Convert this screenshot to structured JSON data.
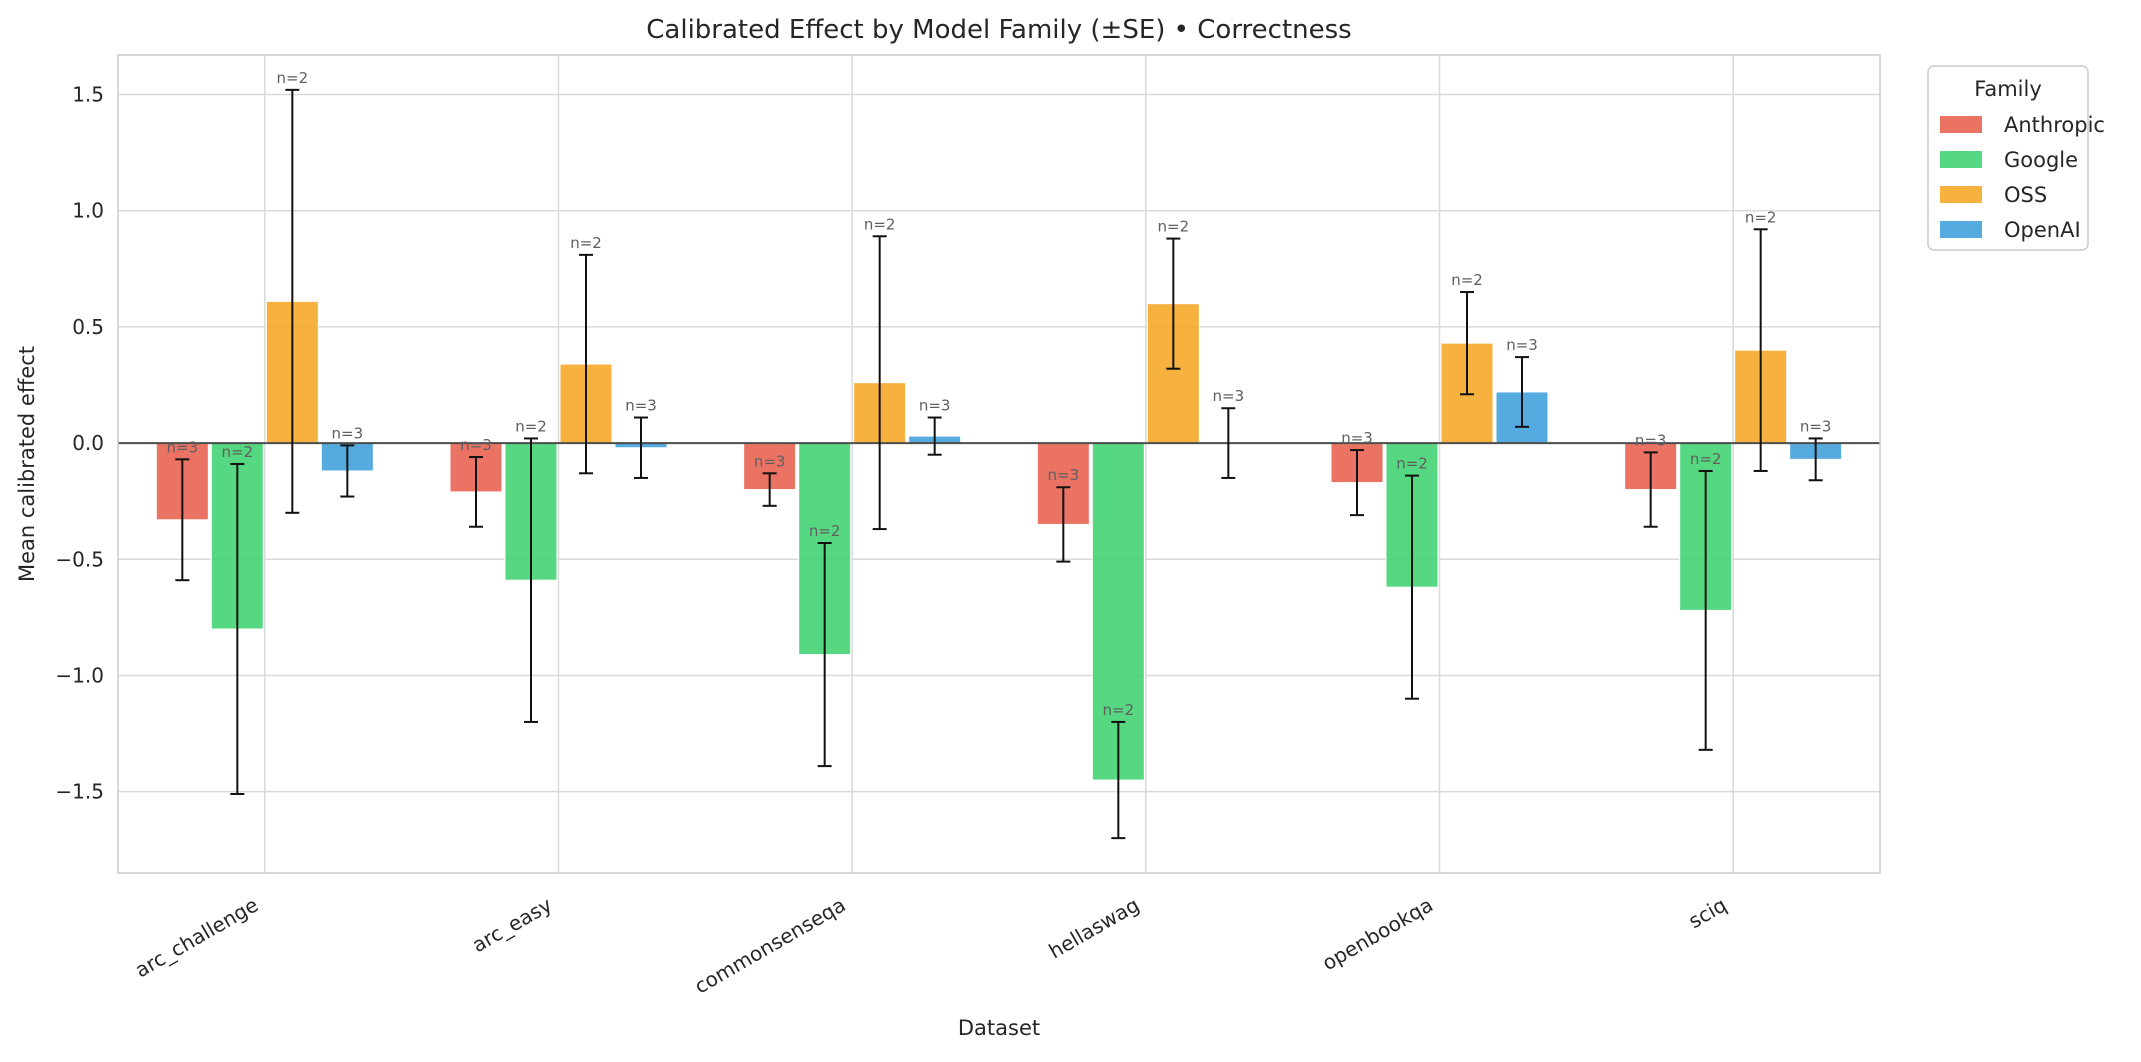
{
  "chart_data": {
    "type": "bar",
    "title": "Calibrated Effect by Model Family (±SE) • Correctness",
    "xlabel": "Dataset",
    "ylabel": "Mean calibrated effect",
    "ylim": [
      -1.85,
      1.67
    ],
    "yticks": [
      1.5,
      1.0,
      0.5,
      0.0,
      -0.5,
      -1.0,
      -1.5
    ],
    "ytick_labels": [
      "1.5",
      "1.0",
      "0.5",
      "0.0",
      "−0.5",
      "−1.0",
      "−1.5"
    ],
    "grid": true,
    "legend": {
      "title": "Family",
      "placement": "outside-top-right"
    },
    "categories": [
      "arc_challenge",
      "arc_easy",
      "commonsenseqa",
      "hellaswag",
      "openbookqa",
      "sciq"
    ],
    "series": [
      {
        "name": "Anthropic",
        "color": "#e8604f",
        "values": [
          -0.33,
          -0.21,
          -0.2,
          -0.35,
          -0.17,
          -0.2
        ],
        "se": [
          0.26,
          0.15,
          0.07,
          0.16,
          0.14,
          0.16
        ],
        "n": [
          "n=3",
          "n=3",
          "n=3",
          "n=3",
          "n=3",
          "n=3"
        ]
      },
      {
        "name": "Google",
        "color": "#3fd170",
        "values": [
          -0.8,
          -0.59,
          -0.91,
          -1.45,
          -0.62,
          -0.72
        ],
        "se": [
          0.71,
          0.61,
          0.48,
          0.25,
          0.48,
          0.6
        ],
        "n": [
          "n=2",
          "n=2",
          "n=2",
          "n=2",
          "n=2",
          "n=2"
        ]
      },
      {
        "name": "OSS",
        "color": "#f5a623",
        "values": [
          0.61,
          0.34,
          0.26,
          0.6,
          0.43,
          0.4
        ],
        "se": [
          0.91,
          0.47,
          0.63,
          0.28,
          0.22,
          0.52
        ],
        "n": [
          "n=2",
          "n=2",
          "n=2",
          "n=2",
          "n=2",
          "n=2"
        ]
      },
      {
        "name": "OpenAI",
        "color": "#3d9fdc",
        "values": [
          -0.12,
          -0.02,
          0.03,
          0.0,
          0.22,
          -0.07
        ],
        "se": [
          0.11,
          0.13,
          0.08,
          0.15,
          0.15,
          0.09
        ],
        "n": [
          "n=3",
          "n=3",
          "n=3",
          "n=3",
          "n=3",
          "n=3"
        ]
      }
    ]
  }
}
